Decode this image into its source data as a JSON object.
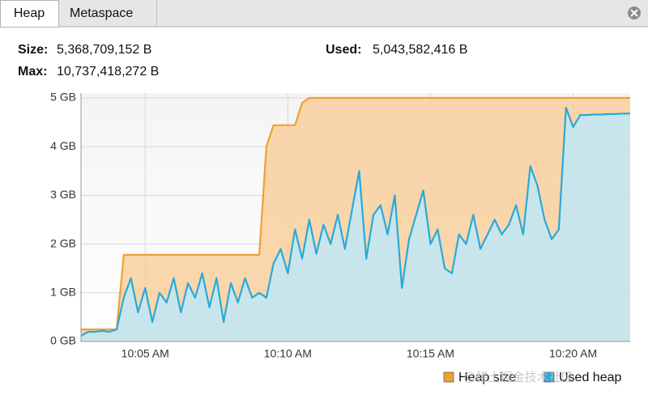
{
  "tabs": [
    "Heap",
    "Metaspace"
  ],
  "stats": [
    {
      "label": "Size:",
      "value": "5,368,709,152 B"
    },
    {
      "label": "Used:",
      "value": "5,043,582,416 B"
    },
    {
      "label": "Max:",
      "value": "10,737,418,272 B"
    }
  ],
  "watermark": "@稀土掘金技术社区",
  "chart_data": {
    "type": "area",
    "categories": [
      null,
      null,
      null,
      null,
      null,
      null,
      null,
      null,
      null,
      "10:05 AM",
      null,
      null,
      null,
      null,
      null,
      null,
      null,
      null,
      null,
      null,
      null,
      null,
      null,
      null,
      null,
      null,
      null,
      null,
      null,
      "10:10 AM",
      null,
      null,
      null,
      null,
      null,
      null,
      null,
      null,
      null,
      null,
      null,
      null,
      null,
      null,
      null,
      null,
      null,
      null,
      null,
      "10:15 AM",
      null,
      null,
      null,
      null,
      null,
      null,
      null,
      null,
      null,
      null,
      null,
      null,
      null,
      null,
      null,
      null,
      null,
      null,
      null,
      "10:20 AM",
      null,
      null,
      null,
      null,
      null,
      null,
      null,
      null
    ],
    "series": [
      {
        "name": "Heap size",
        "color": "#f0a030",
        "fill": "#f8cf9c",
        "values": [
          0.25,
          0.25,
          0.25,
          0.25,
          0.25,
          0.25,
          1.78,
          1.78,
          1.78,
          1.78,
          1.78,
          1.78,
          1.78,
          1.78,
          1.78,
          1.78,
          1.78,
          1.78,
          1.78,
          1.78,
          1.78,
          1.78,
          1.78,
          1.78,
          1.78,
          1.78,
          4.0,
          4.44,
          4.44,
          4.44,
          4.44,
          4.9,
          5.0,
          5.0,
          5.0,
          5.0,
          5.0,
          5.0,
          5.0,
          5.0,
          5.0,
          5.0,
          5.0,
          5.0,
          5.0,
          5.0,
          5.0,
          5.0,
          5.0,
          5.0,
          5.0,
          5.0,
          5.0,
          5.0,
          5.0,
          5.0,
          5.0,
          5.0,
          5.0,
          5.0,
          5.0,
          5.0,
          5.0,
          5.0,
          5.0,
          5.0,
          5.0,
          5.0,
          5.0,
          5.0,
          5.0,
          5.0,
          5.0,
          5.0,
          5.0,
          5.0,
          5.0,
          5.0
        ]
      },
      {
        "name": "Used heap",
        "color": "#2aa9d8",
        "fill": "#bfe8f7",
        "values": [
          0.12,
          0.2,
          0.2,
          0.22,
          0.2,
          0.25,
          0.9,
          1.3,
          0.6,
          1.1,
          0.4,
          1.0,
          0.8,
          1.3,
          0.6,
          1.2,
          0.9,
          1.4,
          0.7,
          1.3,
          0.4,
          1.2,
          0.8,
          1.3,
          0.9,
          1.0,
          0.9,
          1.6,
          1.9,
          1.4,
          2.3,
          1.7,
          2.5,
          1.8,
          2.4,
          2.0,
          2.6,
          1.9,
          2.7,
          3.5,
          1.7,
          2.6,
          2.8,
          2.2,
          3.0,
          1.1,
          2.1,
          2.6,
          3.1,
          2.0,
          2.3,
          1.5,
          1.4,
          2.2,
          2.0,
          2.6,
          1.9,
          2.2,
          2.5,
          2.2,
          2.4,
          2.8,
          2.2,
          3.6,
          3.2,
          2.5,
          2.1,
          2.3,
          4.8,
          4.4,
          4.65,
          4.65,
          4.66,
          4.66,
          4.67,
          4.67,
          4.68,
          4.68
        ]
      }
    ],
    "ylim": [
      0,
      5.1
    ],
    "yticks": [
      {
        "value": 0,
        "label": "0 GB"
      },
      {
        "value": 1,
        "label": "1 GB"
      },
      {
        "value": 2,
        "label": "2 GB"
      },
      {
        "value": 3,
        "label": "3 GB"
      },
      {
        "value": 4,
        "label": "4 GB"
      },
      {
        "value": 5,
        "label": "5 GB"
      }
    ],
    "grid": true
  }
}
